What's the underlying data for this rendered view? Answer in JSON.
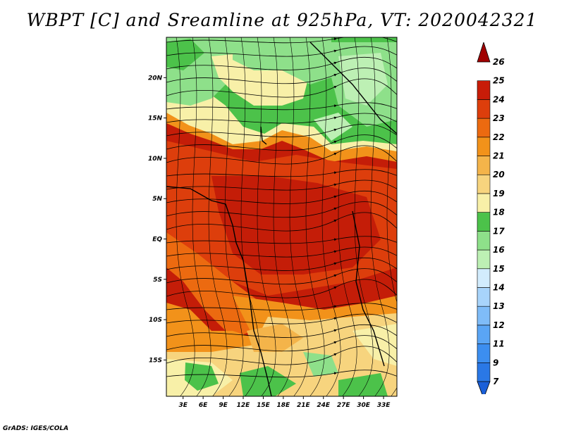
{
  "title": "WBPT [C] and Sreamline at 925hPa, VT: 2020042321",
  "credit": "GrADS: IGES/COLA",
  "map": {
    "lat_labels": [
      "20N",
      "15N",
      "10N",
      "5N",
      "EQ",
      "5S",
      "10S",
      "15S"
    ],
    "lat_values": [
      20,
      15,
      10,
      5,
      0,
      -5,
      -10,
      -15
    ],
    "lon_labels": [
      "3E",
      "6E",
      "9E",
      "12E",
      "15E",
      "18E",
      "21E",
      "24E",
      "27E",
      "30E",
      "33E"
    ],
    "lon_values": [
      3,
      6,
      9,
      12,
      15,
      18,
      21,
      24,
      27,
      30,
      33
    ],
    "lon_range": [
      0.5,
      35
    ],
    "lat_range": [
      -19.5,
      25
    ]
  },
  "colorbar": {
    "levels": [
      "7",
      "9",
      "11",
      "12",
      "13",
      "14",
      "15",
      "16",
      "17",
      "18",
      "19",
      "20",
      "21",
      "22",
      "23",
      "24",
      "25",
      "26"
    ],
    "colors": [
      "#1a5fd8",
      "#2a78e6",
      "#3c8ef0",
      "#5aa5f5",
      "#7fbcf8",
      "#a8d4fb",
      "#d2ecfd",
      "#bdf0b4",
      "#8ee08a",
      "#4cc24a",
      "#f8f0a8",
      "#f7d47e",
      "#f4b44a",
      "#f2921a",
      "#ec6a10",
      "#dd3e0c",
      "#c81c08",
      "#a00000"
    ]
  }
}
